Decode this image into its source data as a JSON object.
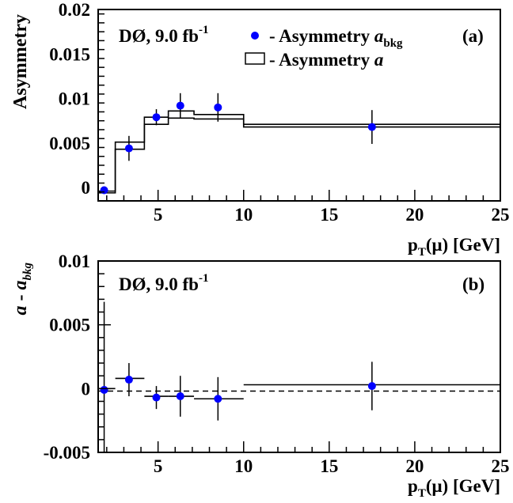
{
  "chart_data": [
    {
      "type": "scatter",
      "panel_label": "(a)",
      "annotation": "DØ, 9.0 fb",
      "annotation_sup": "-1",
      "ylabel": "Asymmetry",
      "xlabel_main": "p",
      "xlabel_sub": "T",
      "xlabel_rest": "(μ) [GeV]",
      "xlim": [
        1.5,
        25
      ],
      "ylim": [
        -0.0015,
        0.02
      ],
      "x_ticks": [
        "5",
        "10",
        "15",
        "20",
        "25"
      ],
      "y_ticks": [
        "0",
        "0.005",
        "0.01",
        "0.015",
        "0.02"
      ],
      "legend": {
        "points_prefix": "- Asymmetry ",
        "points_var": "a",
        "points_sub": "bkg",
        "hist_prefix": "- Asymmetry ",
        "hist_var": "a"
      },
      "series": [
        {
          "name": "Asymmetry a_bkg",
          "points": [
            {
              "x": 1.85,
              "y": -0.0003,
              "err": 0.0004
            },
            {
              "x": 3.3,
              "y": 0.0044,
              "err": 0.0014
            },
            {
              "x": 4.9,
              "y": 0.0079,
              "err": 0.0009
            },
            {
              "x": 6.3,
              "y": 0.0092,
              "err": 0.0014
            },
            {
              "x": 8.5,
              "y": 0.009,
              "err": 0.0016
            },
            {
              "x": 17.5,
              "y": 0.0068,
              "err": 0.0019
            }
          ]
        },
        {
          "name": "Asymmetry a",
          "bins": [
            {
              "x0": 1.5,
              "x1": 2.5,
              "lo": -0.0006,
              "hi": -0.0004
            },
            {
              "x0": 2.5,
              "x1": 4.2,
              "lo": 0.0043,
              "hi": 0.0051
            },
            {
              "x0": 4.2,
              "x1": 5.6,
              "lo": 0.0071,
              "hi": 0.0079
            },
            {
              "x0": 5.6,
              "x1": 7.1,
              "lo": 0.0078,
              "hi": 0.0086
            },
            {
              "x0": 7.1,
              "x1": 10,
              "lo": 0.0077,
              "hi": 0.0082
            },
            {
              "x0": 10,
              "x1": 25,
              "lo": 0.0068,
              "hi": 0.0071
            }
          ]
        }
      ]
    },
    {
      "type": "scatter",
      "panel_label": "(b)",
      "annotation": "DØ, 9.0 fb",
      "annotation_sup": "-1",
      "ylabel_var1": "a",
      "ylabel_mid": " - ",
      "ylabel_var2": "a",
      "ylabel_sub": "bkg",
      "xlabel_main": "p",
      "xlabel_sub": "T",
      "xlabel_rest": "(μ) [GeV]",
      "xlim": [
        1.5,
        25
      ],
      "ylim": [
        -0.005,
        0.01
      ],
      "x_ticks": [
        "5",
        "10",
        "15",
        "20",
        "25"
      ],
      "y_ticks": [
        "-0.005",
        "0",
        "0.005",
        "0.01"
      ],
      "reference_line_y": -0.0002,
      "series": [
        {
          "name": "a - a_bkg",
          "points": [
            {
              "x": 1.85,
              "y": -0.0001,
              "err": 0.0069
            },
            {
              "x": 3.3,
              "y": 0.0007,
              "err": 0.0013
            },
            {
              "x": 4.9,
              "y": -0.0007,
              "err": 0.0009
            },
            {
              "x": 6.3,
              "y": -0.0006,
              "err": 0.0016
            },
            {
              "x": 8.5,
              "y": -0.0008,
              "err": 0.0017
            },
            {
              "x": 17.5,
              "y": 0.0002,
              "err": 0.0019
            }
          ],
          "bins": [
            {
              "x0": 1.5,
              "x1": 2.5,
              "y": 0
            },
            {
              "x0": 2.5,
              "x1": 4.2,
              "y": 0.0008
            },
            {
              "x0": 4.2,
              "x1": 5.6,
              "y": -0.0006
            },
            {
              "x0": 5.6,
              "x1": 7.1,
              "y": -0.0006
            },
            {
              "x0": 7.1,
              "x1": 10,
              "y": -0.0008
            },
            {
              "x0": 10,
              "x1": 25,
              "y": 0.0003
            }
          ]
        }
      ]
    }
  ],
  "colors": {
    "points": "#0000ff",
    "lines": "#000000"
  }
}
